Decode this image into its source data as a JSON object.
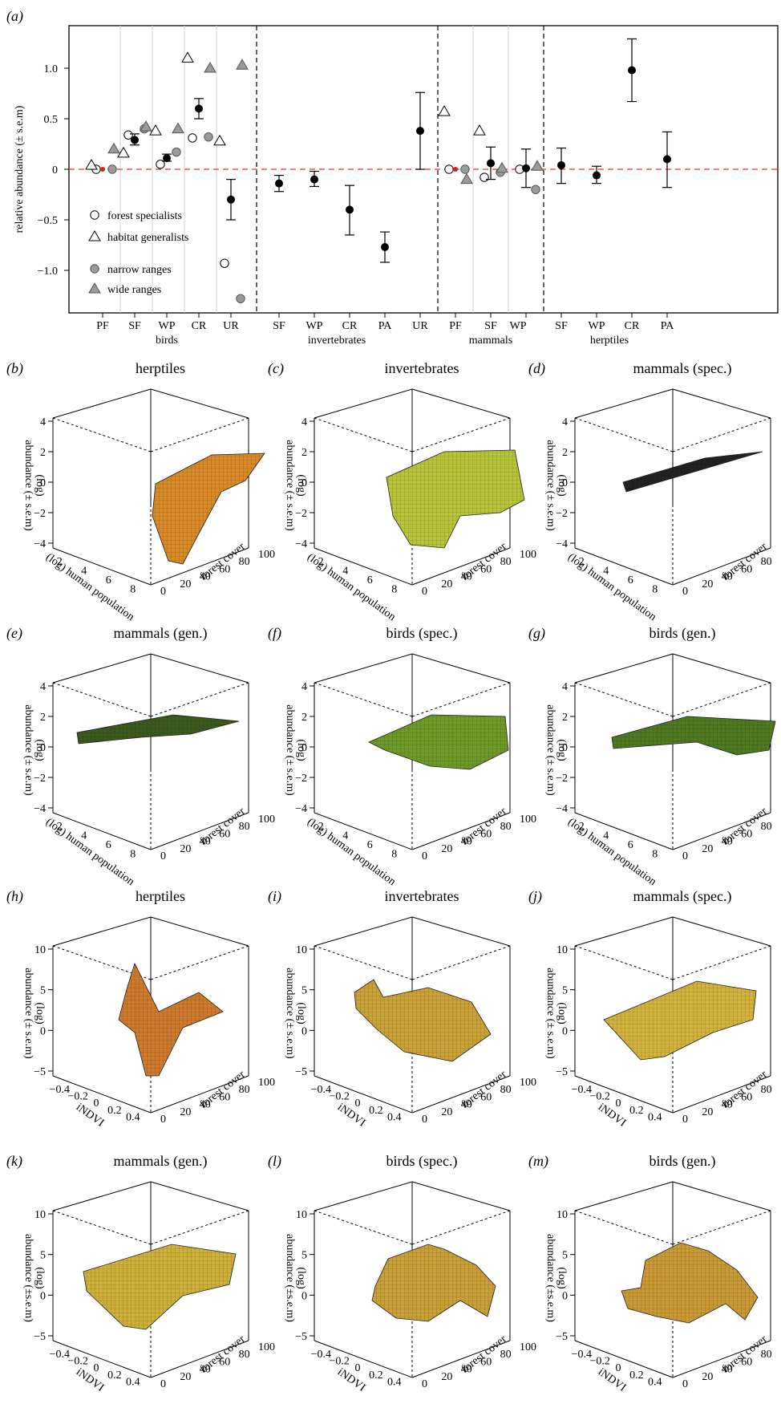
{
  "panel_a": {
    "letter": "(a)",
    "ylabel": "relative abundance (± s.e.m)",
    "yticks": [
      "1.0",
      "0.5",
      "0",
      "−0.5",
      "−1.0"
    ],
    "legend": [
      "forest specialists",
      "habitat generalists",
      "narrow ranges",
      "wide ranges"
    ],
    "groups": [
      "birds",
      "invertebrates",
      "mammals",
      "herptiles"
    ]
  },
  "chart_data": [
    {
      "type": "scatter",
      "panel": "a",
      "ylabel": "relative abundance (± s.e.m)",
      "ylim": [
        -1.4,
        1.4
      ],
      "reference_line": 0,
      "categories": [
        "PF",
        "SF",
        "WP",
        "CR",
        "UR",
        "SF",
        "WP",
        "CR",
        "PA",
        "UR",
        "PF",
        "SF",
        "WP",
        "SF",
        "WP",
        "CR",
        "PA"
      ],
      "group_labels": [
        "birds",
        "invertebrates",
        "mammals",
        "herptiles"
      ],
      "category_groups": [
        "birds",
        "birds",
        "birds",
        "birds",
        "birds",
        "invertebrates",
        "invertebrates",
        "invertebrates",
        "invertebrates",
        "invertebrates",
        "mammals",
        "mammals",
        "mammals",
        "herptiles",
        "herptiles",
        "herptiles",
        "herptiles"
      ],
      "series": [
        {
          "name": "",
          "marker": "filled-circle",
          "values": [
            0,
            0.29,
            0.11,
            0.6,
            -0.3,
            -0.14,
            -0.1,
            -0.4,
            -0.77,
            0.38,
            0,
            0.06,
            0.01,
            0.04,
            -0.06,
            0.98,
            0.1
          ],
          "sem_low": [
            0,
            0.24,
            0.08,
            0.5,
            -0.5,
            -0.22,
            -0.17,
            -0.65,
            -0.92,
            0,
            0,
            -0.1,
            -0.18,
            -0.14,
            -0.14,
            0.67,
            -0.18
          ],
          "sem_high": [
            0,
            0.35,
            0.15,
            0.7,
            -0.1,
            -0.06,
            -0.02,
            -0.16,
            -0.62,
            0.76,
            0,
            0.22,
            0.2,
            0.21,
            0.03,
            1.29,
            0.37
          ]
        },
        {
          "name": "forest specialists",
          "marker": "open-circle",
          "values": [
            0,
            0.34,
            0.05,
            0.31,
            -0.93,
            null,
            null,
            null,
            null,
            null,
            0,
            -0.08,
            0,
            null,
            null,
            null,
            null
          ]
        },
        {
          "name": "habitat generalists",
          "marker": "open-triangle",
          "values": [
            0.04,
            0.16,
            0.38,
            1.1,
            0.28,
            null,
            null,
            null,
            null,
            null,
            0.57,
            0.38,
            null,
            null,
            null,
            null,
            null
          ]
        },
        {
          "name": "narrow ranges",
          "marker": "grey-circle",
          "values": [
            0,
            0.4,
            0.17,
            0.32,
            -1.28,
            null,
            null,
            null,
            null,
            null,
            0,
            -0.03,
            -0.2,
            null,
            null,
            null,
            null
          ]
        },
        {
          "name": "wide ranges",
          "marker": "grey-triangle",
          "values": [
            0.2,
            0.42,
            0.4,
            1.0,
            1.03,
            null,
            null,
            null,
            null,
            null,
            -0.1,
            0.01,
            0.03,
            null,
            null,
            null,
            null
          ]
        }
      ]
    },
    {
      "type": "surface3d",
      "panels": [
        {
          "letter": "(b)",
          "title": "herptiles",
          "xlabel": "(log) human population",
          "ylabel": "forest cover",
          "zlabel": "abundance (± s.e.m) (log)",
          "zticks": [
            "4",
            "2",
            "0",
            "−2",
            "−4"
          ],
          "xticks": [
            "2",
            "4",
            "6",
            "8"
          ],
          "yticks": [
            "0",
            "20",
            "40",
            "60",
            "80",
            "100"
          ],
          "fill": "#d88a28"
        },
        {
          "letter": "(c)",
          "title": "invertebrates",
          "xlabel": "(log) human population",
          "ylabel": "forest cover",
          "zlabel": "abundance (± s.e.m) (log)",
          "zticks": [
            "4",
            "2",
            "0",
            "−2",
            "−4"
          ],
          "xticks": [
            "2",
            "4",
            "6",
            "8"
          ],
          "yticks": [
            "0",
            "20",
            "40",
            "60",
            "80",
            "100"
          ],
          "fill": "#b8c43a"
        },
        {
          "letter": "(d)",
          "title": "mammals (spec.)",
          "xlabel": "(log) human population",
          "ylabel": "forest cover",
          "zlabel": "abundance (± s.e.m) (log)",
          "zticks": [
            "4",
            "2",
            "0",
            "−2",
            "−4"
          ],
          "xticks": [
            "2",
            "4",
            "6",
            "8"
          ],
          "yticks": [
            "0",
            "20",
            "40",
            "60",
            "80",
            "100"
          ],
          "fill": "#222222"
        },
        {
          "letter": "(e)",
          "title": "mammals (gen.)",
          "xlabel": "(log) human population",
          "ylabel": "forest cover",
          "zlabel": "abundance (± s.e.m) (log)",
          "zticks": [
            "4",
            "2",
            "0",
            "−2",
            "−4"
          ],
          "xticks": [
            "2",
            "4",
            "6",
            "8"
          ],
          "yticks": [
            "0",
            "20",
            "40",
            "60",
            "80",
            "100"
          ],
          "fill": "#3c5a1e"
        },
        {
          "letter": "(f)",
          "title": "birds (spec.)",
          "xlabel": "(log) human population",
          "ylabel": "forest cover",
          "zlabel": "abundance (± s.e.m) (log)",
          "zticks": [
            "4",
            "2",
            "0",
            "−2",
            "−4"
          ],
          "xticks": [
            "2",
            "4",
            "6",
            "8"
          ],
          "yticks": [
            "0",
            "20",
            "40",
            "60",
            "80",
            "100"
          ],
          "fill": "#6f9a28"
        },
        {
          "letter": "(g)",
          "title": "birds (gen.)",
          "xlabel": "(log) human population",
          "ylabel": "forest cover",
          "zlabel": "abundance (± s.e.m) (log)",
          "zticks": [
            "4",
            "2",
            "0",
            "−2",
            "−4"
          ],
          "xticks": [
            "2",
            "4",
            "6",
            "8"
          ],
          "yticks": [
            "0",
            "20",
            "40",
            "60",
            "80",
            "100"
          ],
          "fill": "#4f7a22"
        },
        {
          "letter": "(h)",
          "title": "herptiles",
          "xlabel": "iNDVI",
          "ylabel": "forest cover",
          "zlabel": "abundance (± s.e.m) (log)",
          "zticks": [
            "10",
            "5",
            "0",
            "−5"
          ],
          "xticks": [
            "−0.4",
            "−0.2",
            "0",
            "0.2",
            "0.4"
          ],
          "yticks": [
            "0",
            "20",
            "40",
            "60",
            "80",
            "100"
          ],
          "fill": "#cf7a2c"
        },
        {
          "letter": "(i)",
          "title": "invertebrates",
          "xlabel": "iNDVI",
          "ylabel": "forest cover",
          "zlabel": "abundance (± s.e.m) (log)",
          "zticks": [
            "10",
            "5",
            "0",
            "−5"
          ],
          "xticks": [
            "−0.4",
            "−0.2",
            "0",
            "0.2",
            "0.4"
          ],
          "yticks": [
            "0",
            "20",
            "40",
            "60",
            "80",
            "100"
          ],
          "fill": "#caa238"
        },
        {
          "letter": "(j)",
          "title": "mammals (spec.)",
          "xlabel": "iNDVI",
          "ylabel": "forest cover",
          "zlabel": "abundance (± s.e.m) (log)",
          "zticks": [
            "10",
            "5",
            "0",
            "−5"
          ],
          "xticks": [
            "−0.4",
            "−0.2",
            "0",
            "0.2",
            "0.4"
          ],
          "yticks": [
            "0",
            "20",
            "40",
            "60",
            "80",
            "100"
          ],
          "fill": "#d2b43c"
        },
        {
          "letter": "(k)",
          "title": "mammals (gen.)",
          "xlabel": "iNDVI",
          "ylabel": "forest cover",
          "zlabel": "abundance (±s.e.m) (log)",
          "zticks": [
            "10",
            "5",
            "0",
            "−5"
          ],
          "xticks": [
            "−0.4",
            "−0.2",
            "0",
            "0.2",
            "0.4"
          ],
          "yticks": [
            "0",
            "20",
            "40",
            "60",
            "80",
            "100"
          ],
          "fill": "#cfb03a"
        },
        {
          "letter": "(l)",
          "title": "birds (spec.)",
          "xlabel": "iNDVI",
          "ylabel": "forest cover",
          "zlabel": "abundance (±s.e.m) (log)",
          "zticks": [
            "10",
            "5",
            "0",
            "−5"
          ],
          "xticks": [
            "−0.4",
            "−0.2",
            "0",
            "0.2",
            "0.4"
          ],
          "yticks": [
            "0",
            "20",
            "40",
            "60",
            "80",
            "100"
          ],
          "fill": "#caa038"
        },
        {
          "letter": "(m)",
          "title": "birds (gen.)",
          "xlabel": "iNDVI",
          "ylabel": "forest cover",
          "zlabel": "abundance (±s.e.m) (log)",
          "zticks": [
            "10",
            "5",
            "0",
            "−5"
          ],
          "xticks": [
            "−0.4",
            "−0.2",
            "0",
            "0.2",
            "0.4"
          ],
          "yticks": [
            "0",
            "20",
            "40",
            "60",
            "80",
            "100"
          ],
          "fill": "#c99a36"
        }
      ]
    }
  ]
}
